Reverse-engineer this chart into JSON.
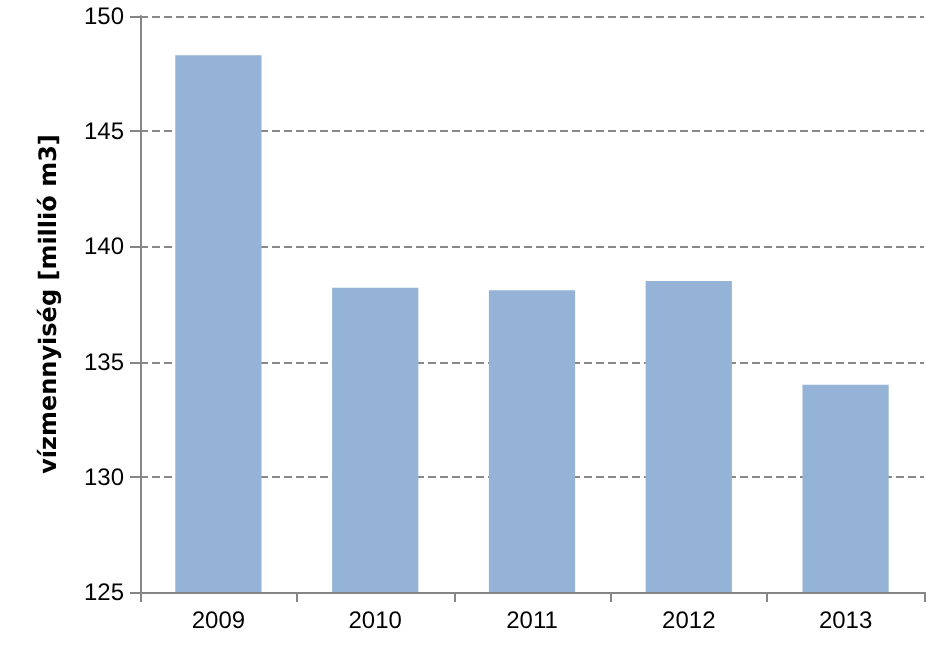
{
  "chart_data": {
    "type": "bar",
    "ylabel": "vízmennyiség [millió m3]",
    "categories": [
      "2009",
      "2010",
      "2011",
      "2012",
      "2013"
    ],
    "values": [
      148.3,
      138.2,
      138.1,
      138.5,
      134.0
    ],
    "color": "#95b3d7",
    "ylim": [
      125,
      150
    ],
    "yticks": [
      125,
      130,
      135,
      140,
      145,
      150
    ],
    "grid": "y"
  }
}
